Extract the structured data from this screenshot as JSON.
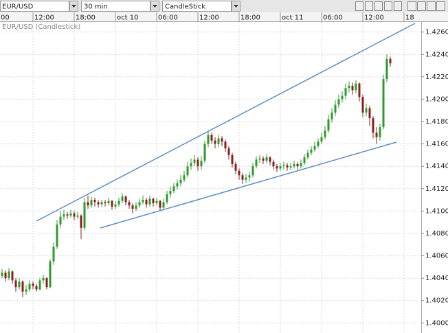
{
  "toolbar": {
    "symbol": "EUR/USD",
    "interval": "30 min",
    "style": "CandleStick"
  },
  "chart_data": {
    "type": "candlestick",
    "label": "EUR/USD (Candlestick)",
    "categories": [
      "00",
      null,
      null,
      null,
      null,
      null,
      null,
      null,
      null,
      null,
      null,
      null,
      "12:00",
      null,
      null,
      null,
      null,
      null,
      null,
      null,
      null,
      null,
      null,
      null,
      "18:00",
      null,
      null,
      null,
      null,
      null,
      null,
      null,
      null,
      null,
      null,
      null,
      "oct 10",
      null,
      null,
      null,
      null,
      null,
      null,
      null,
      null,
      null,
      null,
      null,
      "06:00",
      null,
      null,
      null,
      null,
      null,
      null,
      null,
      null,
      null,
      null,
      null,
      "12:00",
      null,
      null,
      null,
      null,
      null,
      null,
      null,
      null,
      null,
      null,
      null,
      "18:00",
      null,
      null,
      null,
      null,
      null,
      null,
      null,
      null,
      null,
      null,
      null,
      "oct 11",
      null,
      null,
      null,
      null,
      null,
      null,
      null,
      null,
      null,
      null,
      null,
      "06:00",
      null,
      null,
      null,
      null,
      null,
      null,
      null,
      null,
      null,
      null,
      null,
      "12:00",
      null,
      null,
      null,
      null,
      null,
      null,
      null,
      null,
      null,
      null,
      null,
      "18"
    ],
    "open": [
      null,
      null,
      null,
      1.4042,
      1.4045,
      1.404,
      1.4046,
      1.4038,
      1.4032,
      1.4037,
      1.4028,
      1.403,
      1.4035,
      1.4033,
      1.403,
      1.4038,
      1.404,
      1.4032,
      1.4055,
      1.4068,
      1.4088,
      1.4095,
      1.4097,
      1.4096,
      1.4098,
      1.4095,
      1.4096,
      1.4085,
      1.4108,
      1.4105,
      1.411,
      1.4108,
      1.4106,
      1.4108,
      1.4107,
      1.4109,
      1.4104,
      1.4106,
      1.4109,
      1.4113,
      1.4108,
      1.4105,
      1.4102,
      1.4105,
      1.4108,
      1.411,
      1.4106,
      1.4111,
      1.4107,
      1.4109,
      1.4103,
      1.4108,
      1.4115,
      1.4118,
      1.4122,
      1.4125,
      1.4128,
      1.4132,
      1.414,
      1.4143,
      1.4146,
      1.414,
      1.4145,
      1.416,
      1.4168,
      1.4163,
      1.416,
      1.4165,
      1.4162,
      1.4156,
      1.415,
      1.4142,
      1.4136,
      1.4132,
      1.4128,
      1.413,
      1.4132,
      1.414,
      1.4146,
      1.4147,
      1.4145,
      1.4148,
      1.4144,
      1.414,
      1.4138,
      1.414,
      1.4141,
      1.4139,
      1.414,
      1.4142,
      1.414,
      1.4143,
      1.4148,
      1.4152,
      1.4155,
      1.4158,
      1.4162,
      1.4166,
      1.4172,
      1.4182,
      1.4188,
      1.4195,
      1.42,
      1.4203,
      1.421,
      1.4212,
      1.4208,
      1.4214,
      1.4202,
      1.4188,
      1.4192,
      1.4183,
      1.417,
      1.4166,
      1.4175,
      1.4218,
      1.4236,
      null,
      null,
      null,
      null
    ],
    "high": [
      null,
      null,
      null,
      1.4048,
      1.4047,
      1.4049,
      1.4047,
      1.404,
      1.404,
      1.4038,
      1.4034,
      1.4038,
      1.4037,
      1.4035,
      1.404,
      1.4043,
      1.4041,
      1.4057,
      1.4072,
      1.4092,
      1.41,
      1.4101,
      1.4099,
      1.4101,
      1.41,
      1.4099,
      1.4097,
      1.4112,
      1.4114,
      1.4113,
      1.4112,
      1.411,
      1.411,
      1.411,
      1.4112,
      1.411,
      1.4109,
      1.4112,
      1.4116,
      1.4114,
      1.411,
      1.4107,
      1.4108,
      1.4111,
      1.4114,
      1.4112,
      1.4114,
      1.4112,
      1.4112,
      1.411,
      1.4111,
      1.4118,
      1.4122,
      1.4125,
      1.4128,
      1.4132,
      1.4136,
      1.4144,
      1.4147,
      1.415,
      1.4148,
      1.4149,
      1.4163,
      1.4172,
      1.417,
      1.4166,
      1.4168,
      1.4167,
      1.4164,
      1.4158,
      1.4152,
      1.4144,
      1.4138,
      1.4134,
      1.4133,
      1.4135,
      1.4143,
      1.4149,
      1.415,
      1.4149,
      1.4151,
      1.4149,
      1.4146,
      1.4142,
      1.4143,
      1.4144,
      1.4143,
      1.4143,
      1.4145,
      1.4144,
      1.4146,
      1.4151,
      1.4155,
      1.4158,
      1.4162,
      1.4165,
      1.417,
      1.4176,
      1.4186,
      1.4192,
      1.4199,
      1.4204,
      1.4207,
      1.4214,
      1.4216,
      1.4215,
      1.4217,
      1.4215,
      1.4204,
      1.4196,
      1.4194,
      1.4185,
      1.4175,
      1.4178,
      1.4222,
      1.424,
      1.4238,
      null,
      null,
      null,
      null
    ],
    "low": [
      null,
      null,
      null,
      1.404,
      1.4037,
      1.4038,
      1.4035,
      1.4028,
      1.403,
      1.4023,
      1.4025,
      1.4028,
      1.403,
      1.4028,
      1.4029,
      1.4035,
      1.403,
      1.4031,
      1.4052,
      1.4066,
      1.4085,
      1.4092,
      1.4093,
      1.4094,
      1.4092,
      1.4093,
      1.4075,
      1.4083,
      1.4102,
      1.4103,
      1.4104,
      1.4103,
      1.4104,
      1.4104,
      1.4105,
      1.4101,
      1.4102,
      1.4104,
      1.4107,
      1.4105,
      1.4102,
      1.4098,
      1.41,
      1.4103,
      1.4106,
      1.4103,
      1.4104,
      1.4104,
      1.4105,
      1.41,
      1.4101,
      1.4106,
      1.4112,
      1.4116,
      1.4119,
      1.4122,
      1.4126,
      1.413,
      1.4137,
      1.414,
      1.4136,
      1.4137,
      1.4143,
      1.4157,
      1.416,
      1.4156,
      1.4157,
      1.4158,
      1.4153,
      1.4146,
      1.4139,
      1.4133,
      1.4128,
      1.4124,
      1.4125,
      1.4126,
      1.413,
      1.4138,
      1.4143,
      1.4142,
      1.4143,
      1.4141,
      1.4137,
      1.4135,
      1.4136,
      1.4137,
      1.4136,
      1.4137,
      1.4138,
      1.4137,
      1.4138,
      1.4141,
      1.4146,
      1.415,
      1.4153,
      1.4156,
      1.416,
      1.4164,
      1.417,
      1.4179,
      1.4185,
      1.4192,
      1.4197,
      1.42,
      1.4206,
      1.4204,
      1.4205,
      1.4198,
      1.4184,
      1.4185,
      1.4176,
      1.4165,
      1.416,
      1.4163,
      1.4173,
      1.4215,
      1.4229,
      null,
      null,
      null,
      null
    ],
    "close": [
      null,
      null,
      null,
      1.4045,
      1.404,
      1.4046,
      1.4038,
      1.4032,
      1.4037,
      1.4028,
      1.403,
      1.4035,
      1.4033,
      1.403,
      1.4038,
      1.404,
      1.4032,
      1.4055,
      1.4068,
      1.4088,
      1.4095,
      1.4097,
      1.4096,
      1.4098,
      1.4095,
      1.4096,
      1.4085,
      1.4108,
      1.4105,
      1.411,
      1.4108,
      1.4106,
      1.4108,
      1.4107,
      1.4109,
      1.4104,
      1.4106,
      1.4109,
      1.4113,
      1.4108,
      1.4105,
      1.4102,
      1.4105,
      1.4108,
      1.411,
      1.4106,
      1.4111,
      1.4107,
      1.4109,
      1.4103,
      1.4108,
      1.4115,
      1.4118,
      1.4122,
      1.4125,
      1.4128,
      1.4132,
      1.414,
      1.4143,
      1.4146,
      1.414,
      1.4145,
      1.416,
      1.4168,
      1.4163,
      1.416,
      1.4165,
      1.4162,
      1.4156,
      1.415,
      1.4142,
      1.4136,
      1.4132,
      1.4128,
      1.413,
      1.4132,
      1.414,
      1.4146,
      1.4147,
      1.4145,
      1.4148,
      1.4144,
      1.414,
      1.4138,
      1.414,
      1.4141,
      1.4139,
      1.414,
      1.4142,
      1.414,
      1.4143,
      1.4148,
      1.4152,
      1.4155,
      1.4158,
      1.4162,
      1.4166,
      1.4172,
      1.4182,
      1.4188,
      1.4195,
      1.42,
      1.4203,
      1.421,
      1.4212,
      1.4208,
      1.4214,
      1.4202,
      1.4188,
      1.4192,
      1.4183,
      1.417,
      1.4166,
      1.4175,
      1.4218,
      1.4236,
      1.4232,
      null,
      null,
      null,
      null
    ],
    "up_color": "#2e9a2e",
    "down_color": "#8b1e1e",
    "ylim": [
      1.3991,
      1.4269
    ],
    "yticks": [
      {
        "value": 1.4,
        "label": "1.4000"
      },
      {
        "value": 1.402,
        "label": "1.4020"
      },
      {
        "value": 1.404,
        "label": "1.4040"
      },
      {
        "value": 1.406,
        "label": "1.4060"
      },
      {
        "value": 1.408,
        "label": "1.4080"
      },
      {
        "value": 1.41,
        "label": "1.4100"
      },
      {
        "value": 1.412,
        "label": "1.4120"
      },
      {
        "value": 1.414,
        "label": "1.4140"
      },
      {
        "value": 1.416,
        "label": "1.4160"
      },
      {
        "value": 1.418,
        "label": "1.4180"
      },
      {
        "value": 1.42,
        "label": "1.4200"
      },
      {
        "value": 1.422,
        "label": "1.4220"
      },
      {
        "value": 1.424,
        "label": "1.4240"
      },
      {
        "value": 1.426,
        "label": "1.4260"
      }
    ],
    "grid": true
  }
}
